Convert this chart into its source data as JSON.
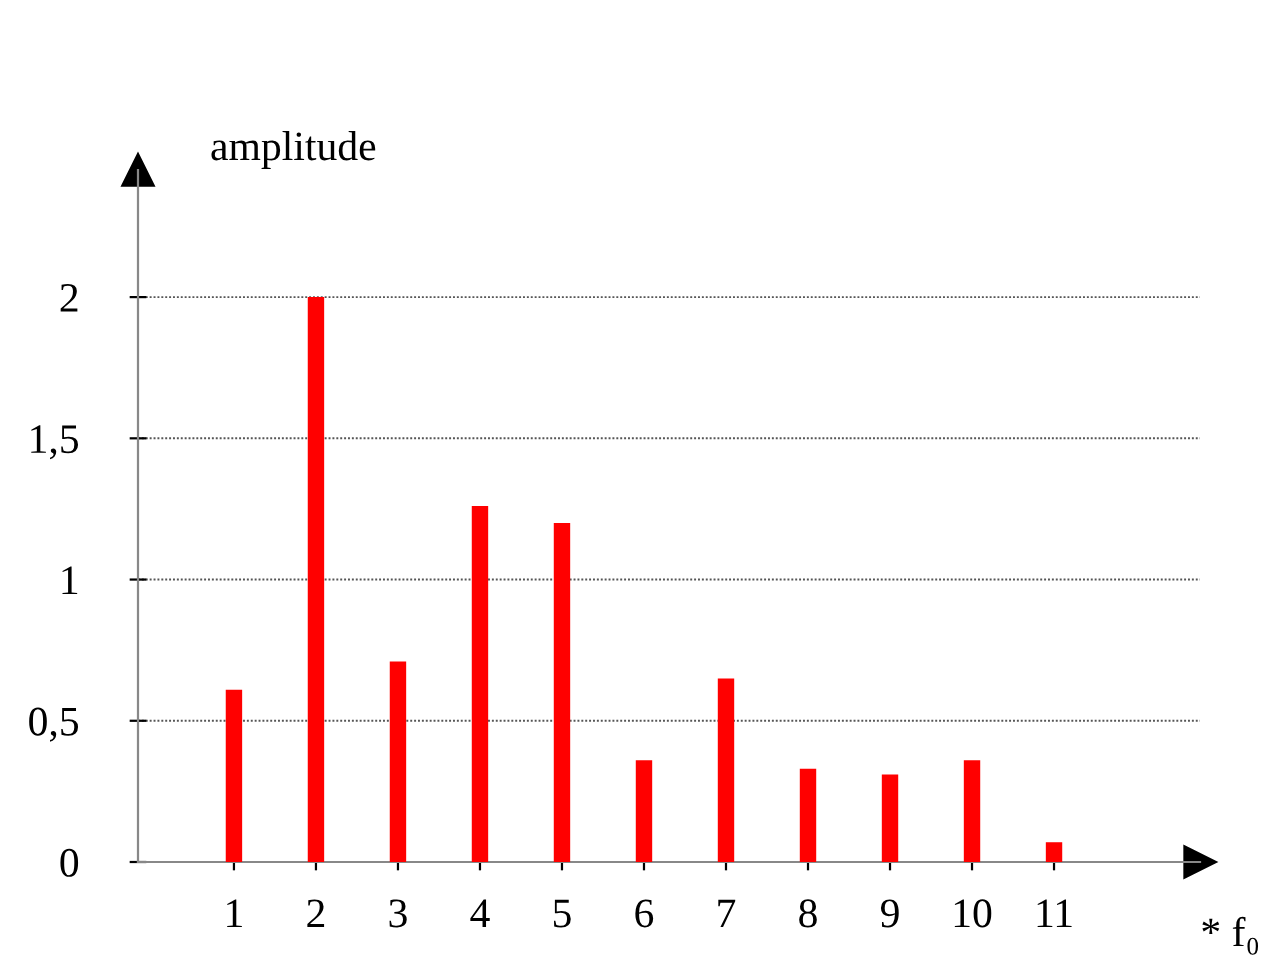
{
  "chart_data": {
    "type": "bar",
    "ylabel": "amplitude",
    "xlabel": "* f₀",
    "categories": [
      "1",
      "2",
      "3",
      "4",
      "5",
      "6",
      "7",
      "8",
      "9",
      "10",
      "11"
    ],
    "values": [
      0.61,
      2.0,
      0.71,
      1.26,
      1.2,
      0.36,
      0.65,
      0.33,
      0.31,
      0.36,
      0.07
    ],
    "color": "#ff0000",
    "ylim": [
      0,
      2.45
    ],
    "yticks": [
      0,
      {
        "value": 0.5,
        "label": "0,5"
      },
      1,
      {
        "value": 1.5,
        "label": "1,5"
      },
      2
    ],
    "grid": "y"
  }
}
